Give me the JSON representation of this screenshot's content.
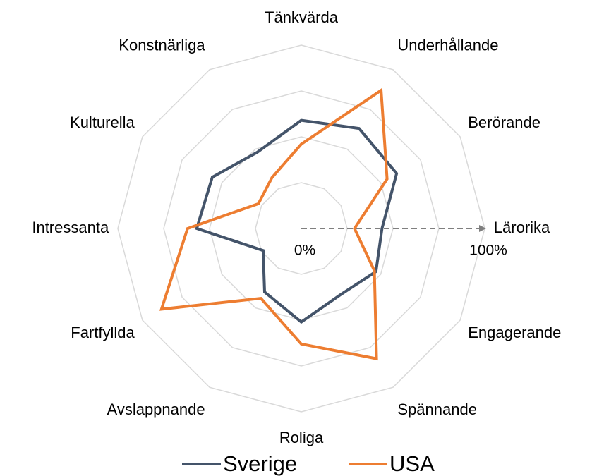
{
  "chart_data": {
    "type": "radar",
    "categories": [
      "Tänkvärda",
      "Underhållande",
      "Berörande",
      "Lärorika",
      "Engagerande",
      "Spännande",
      "Roliga",
      "Avslappnande",
      "Fartfyllda",
      "Intressanta",
      "Kulturella",
      "Konstnärliga"
    ],
    "series": [
      {
        "name": "Sverige",
        "color": "#44546a",
        "values": [
          59,
          63,
          60,
          44,
          47,
          42,
          51,
          40,
          24,
          57,
          56,
          48
        ]
      },
      {
        "name": "USA",
        "color": "#ed7d31",
        "values": [
          46,
          87,
          54,
          29,
          46,
          82,
          63,
          44,
          88,
          62,
          27,
          32
        ]
      }
    ],
    "ylim": [
      0,
      100
    ],
    "yticks": [
      {
        "value": 0,
        "label": "0%"
      },
      {
        "value": 100,
        "label": "100%"
      }
    ],
    "grid_rings": [
      25,
      50,
      75,
      100
    ],
    "legend": "bottom"
  }
}
